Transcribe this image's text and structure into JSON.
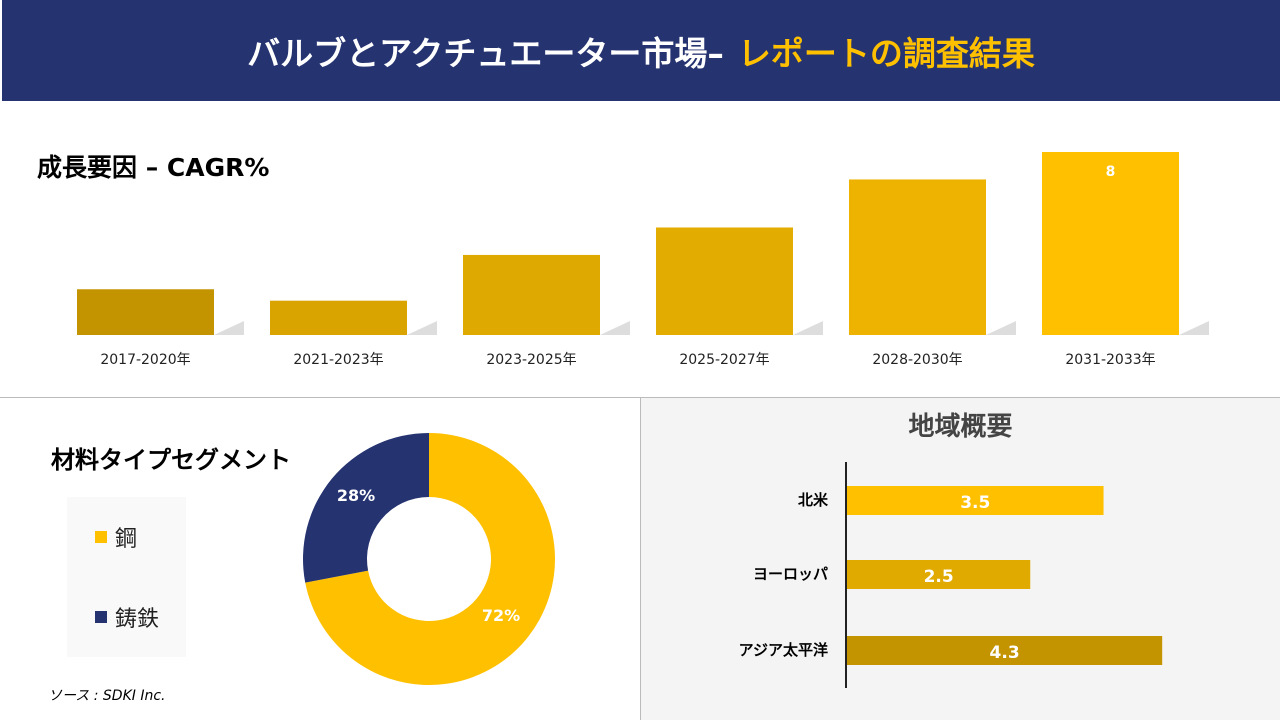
{
  "header": {
    "title_main": "バルブとアクチュエーター市場–",
    "title_highlight": "レポートの調査結果"
  },
  "colors": {
    "header_bg": "#253370",
    "accent": "#FFC000",
    "navy": "#253370"
  },
  "chart_data": [
    {
      "type": "bar",
      "title": "成長要因 – CAGR%",
      "categories": [
        "2017-2020年",
        "2021-2023年",
        "2023-2025年",
        "2025-2027年",
        "2028-2030年",
        "2031-2033年"
      ],
      "values": [
        2.0,
        1.5,
        3.5,
        4.7,
        6.8,
        8
      ],
      "data_labels": [
        null,
        null,
        null,
        null,
        null,
        "8"
      ],
      "colors": [
        "#C49400",
        "#D9A400",
        "#DEA900",
        "#E3AC00",
        "#EDB300",
        "#FFC000"
      ],
      "ylim": [
        0,
        8
      ],
      "grid": false
    },
    {
      "type": "pie",
      "title": "材料タイプセグメント",
      "donut": true,
      "categories": [
        "鋼",
        "鋳鉄"
      ],
      "values": [
        72,
        28
      ],
      "data_labels": [
        "72%",
        "28%"
      ],
      "colors": [
        "#FFC000",
        "#253370"
      ],
      "legend": "left"
    },
    {
      "type": "bar",
      "orientation": "horizontal",
      "title": "地域概要",
      "categories": [
        "北米",
        "ヨーロッパ",
        "アジア太平洋"
      ],
      "values": [
        3.5,
        2.5,
        4.3
      ],
      "data_labels": [
        "3.5",
        "2.5",
        "4.3"
      ],
      "colors": [
        "#FFC000",
        "#E0AA00",
        "#C49400"
      ]
    }
  ],
  "source": "ソース : SDKI Inc."
}
